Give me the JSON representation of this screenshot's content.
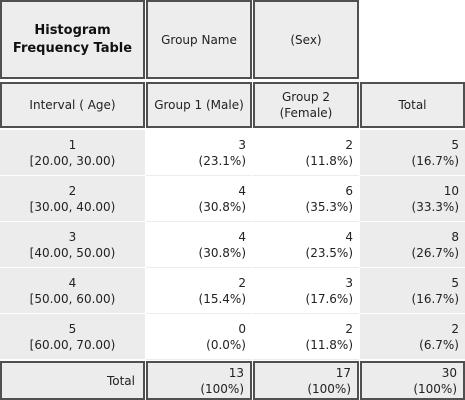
{
  "header": {
    "title_line1": "Histogram",
    "title_line2": "Frequency Table",
    "group_name_label": "Group Name",
    "group_name_value": "(Sex)"
  },
  "columns": {
    "interval": "Interval ( Age)",
    "group1": "Group 1 (Male)",
    "group2_line1": "Group 2",
    "group2_line2": "(Female)",
    "total": "Total"
  },
  "rows": [
    {
      "index": "1",
      "range": "[20.00, 30.00)",
      "g1_count": "3",
      "g1_pct": "(23.1%)",
      "g2_count": "2",
      "g2_pct": "(11.8%)",
      "total_count": "5",
      "total_pct": "(16.7%)"
    },
    {
      "index": "2",
      "range": "[30.00, 40.00)",
      "g1_count": "4",
      "g1_pct": "(30.8%)",
      "g2_count": "6",
      "g2_pct": "(35.3%)",
      "total_count": "10",
      "total_pct": "(33.3%)"
    },
    {
      "index": "3",
      "range": "[40.00, 50.00)",
      "g1_count": "4",
      "g1_pct": "(30.8%)",
      "g2_count": "4",
      "g2_pct": "(23.5%)",
      "total_count": "8",
      "total_pct": "(26.7%)"
    },
    {
      "index": "4",
      "range": "[50.00, 60.00)",
      "g1_count": "2",
      "g1_pct": "(15.4%)",
      "g2_count": "3",
      "g2_pct": "(17.6%)",
      "total_count": "5",
      "total_pct": "(16.7%)"
    },
    {
      "index": "5",
      "range": "[60.00, 70.00)",
      "g1_count": "0",
      "g1_pct": "(0.0%)",
      "g2_count": "2",
      "g2_pct": "(11.8%)",
      "total_count": "2",
      "total_pct": "(6.7%)"
    }
  ],
  "footer": {
    "label": "Total",
    "g1_count": "13",
    "g1_pct": "(100%)",
    "g2_count": "17",
    "g2_pct": "(100%)",
    "total_count": "30",
    "total_pct": "(100%)"
  }
}
